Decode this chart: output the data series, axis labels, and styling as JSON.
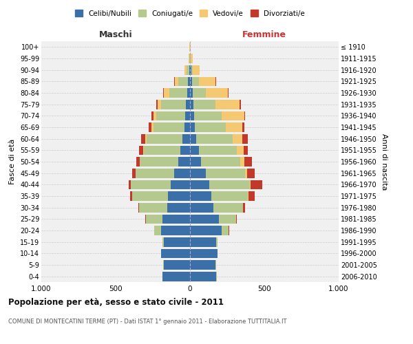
{
  "age_groups": [
    "0-4",
    "5-9",
    "10-14",
    "15-19",
    "20-24",
    "25-29",
    "30-34",
    "35-39",
    "40-44",
    "45-49",
    "50-54",
    "55-59",
    "60-64",
    "65-69",
    "70-74",
    "75-79",
    "80-84",
    "85-89",
    "90-94",
    "95-99",
    "100+"
  ],
  "birth_years": [
    "2006-2010",
    "2001-2005",
    "1996-2000",
    "1991-1995",
    "1986-1990",
    "1981-1985",
    "1976-1980",
    "1971-1975",
    "1966-1970",
    "1961-1965",
    "1956-1960",
    "1951-1955",
    "1946-1950",
    "1941-1945",
    "1936-1940",
    "1931-1935",
    "1926-1930",
    "1921-1925",
    "1916-1920",
    "1911-1915",
    "≤ 1910"
  ],
  "males": {
    "celibi": [
      185,
      178,
      193,
      178,
      193,
      183,
      153,
      148,
      128,
      108,
      78,
      63,
      53,
      38,
      33,
      28,
      18,
      13,
      4,
      2,
      1
    ],
    "coniugati": [
      2,
      2,
      3,
      8,
      48,
      113,
      188,
      243,
      268,
      258,
      258,
      248,
      238,
      208,
      193,
      168,
      123,
      68,
      18,
      4,
      1
    ],
    "vedovi": [
      0,
      0,
      0,
      0,
      0,
      0,
      0,
      0,
      2,
      2,
      3,
      5,
      8,
      13,
      18,
      23,
      33,
      23,
      13,
      3,
      1
    ],
    "divorziati": [
      0,
      0,
      0,
      0,
      2,
      4,
      6,
      10,
      16,
      20,
      23,
      26,
      28,
      18,
      16,
      10,
      6,
      4,
      1,
      0,
      0
    ]
  },
  "females": {
    "nubili": [
      178,
      173,
      183,
      178,
      213,
      193,
      158,
      143,
      128,
      108,
      73,
      58,
      43,
      33,
      28,
      23,
      18,
      15,
      7,
      2,
      1
    ],
    "coniugate": [
      1,
      2,
      3,
      8,
      48,
      118,
      198,
      248,
      273,
      263,
      263,
      258,
      243,
      208,
      183,
      148,
      88,
      43,
      10,
      2,
      0
    ],
    "vedove": [
      0,
      0,
      0,
      0,
      0,
      1,
      2,
      3,
      6,
      13,
      28,
      43,
      68,
      113,
      153,
      163,
      148,
      113,
      48,
      13,
      2
    ],
    "divorziate": [
      0,
      0,
      0,
      0,
      1,
      4,
      13,
      43,
      78,
      53,
      53,
      28,
      33,
      13,
      8,
      8,
      6,
      4,
      1,
      0,
      0
    ]
  },
  "colors": {
    "celibi": "#3A6FA8",
    "coniugati": "#B5C98E",
    "vedovi": "#F5C971",
    "divorziati": "#C0392B"
  },
  "xlim": 1000,
  "title": "Popolazione per età, sesso e stato civile - 2011",
  "subtitle": "COMUNE DI MONTECATINI TERME (PT) - Dati ISTAT 1° gennaio 2011 - Elaborazione TUTTITALIA.IT",
  "ylabel_left": "Fasce di età",
  "ylabel_right": "Anni di nascita",
  "xlabel_left": "Maschi",
  "xlabel_right": "Femmine",
  "legend_labels": [
    "Celibi/Nubili",
    "Coniugati/e",
    "Vedovi/e",
    "Divorziati/e"
  ],
  "bg_color": "#f0f0f0",
  "fig_color": "#ffffff"
}
